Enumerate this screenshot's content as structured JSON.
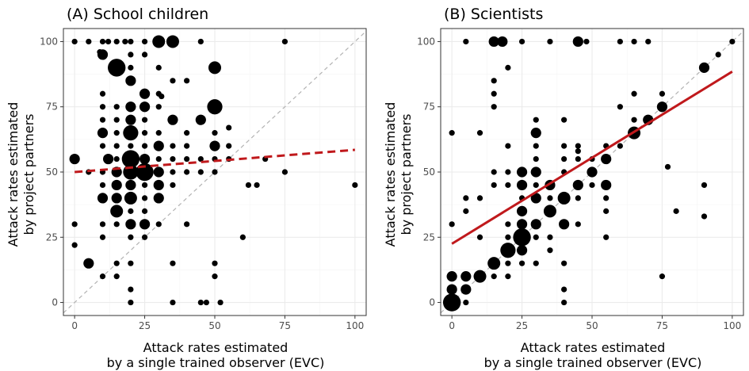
{
  "chart_data": [
    {
      "type": "scatter",
      "title": "(A) School children",
      "xlabel": [
        "Attack rates estimated",
        "by a single trained observer (EVC)"
      ],
      "ylabel": [
        "Attack rates estimated",
        "by project partners"
      ],
      "xlim": [
        -4,
        104
      ],
      "ylim": [
        -5,
        105
      ],
      "xticks": [
        0,
        25,
        50,
        75,
        100
      ],
      "yticks": [
        0,
        25,
        50,
        75,
        100
      ],
      "grid": true,
      "identity_line": true,
      "fit": {
        "intercept": 50,
        "slope": 0.085,
        "style": "dashed",
        "color": "#c0191c"
      },
      "points": [
        {
          "x": 0,
          "y": 100,
          "n": 1
        },
        {
          "x": 5,
          "y": 100,
          "n": 1
        },
        {
          "x": 10,
          "y": 100,
          "n": 1
        },
        {
          "x": 12,
          "y": 100,
          "n": 1
        },
        {
          "x": 15,
          "y": 100,
          "n": 1
        },
        {
          "x": 18,
          "y": 100,
          "n": 1
        },
        {
          "x": 20,
          "y": 100,
          "n": 1
        },
        {
          "x": 25,
          "y": 100,
          "n": 1
        },
        {
          "x": 30,
          "y": 100,
          "n": 4
        },
        {
          "x": 35,
          "y": 100,
          "n": 4
        },
        {
          "x": 45,
          "y": 100,
          "n": 1
        },
        {
          "x": 75,
          "y": 100,
          "n": 1
        },
        {
          "x": 10,
          "y": 95,
          "n": 3
        },
        {
          "x": 20,
          "y": 95,
          "n": 1
        },
        {
          "x": 25,
          "y": 95,
          "n": 1
        },
        {
          "x": 9,
          "y": 96,
          "n": 1
        },
        {
          "x": 15,
          "y": 90,
          "n": 6
        },
        {
          "x": 20,
          "y": 90,
          "n": 1
        },
        {
          "x": 30,
          "y": 90,
          "n": 1
        },
        {
          "x": 50,
          "y": 90,
          "n": 4
        },
        {
          "x": 20,
          "y": 85,
          "n": 3
        },
        {
          "x": 35,
          "y": 85,
          "n": 1
        },
        {
          "x": 40,
          "y": 85,
          "n": 1
        },
        {
          "x": 10,
          "y": 80,
          "n": 1
        },
        {
          "x": 25,
          "y": 80,
          "n": 3
        },
        {
          "x": 30,
          "y": 80,
          "n": 1
        },
        {
          "x": 31,
          "y": 79,
          "n": 1
        },
        {
          "x": 10,
          "y": 75,
          "n": 1
        },
        {
          "x": 15,
          "y": 75,
          "n": 1
        },
        {
          "x": 20,
          "y": 75,
          "n": 3
        },
        {
          "x": 25,
          "y": 75,
          "n": 3
        },
        {
          "x": 30,
          "y": 75,
          "n": 1
        },
        {
          "x": 50,
          "y": 75,
          "n": 5
        },
        {
          "x": 10,
          "y": 70,
          "n": 1
        },
        {
          "x": 15,
          "y": 70,
          "n": 1
        },
        {
          "x": 20,
          "y": 70,
          "n": 3
        },
        {
          "x": 25,
          "y": 70,
          "n": 1
        },
        {
          "x": 35,
          "y": 70,
          "n": 3
        },
        {
          "x": 45,
          "y": 70,
          "n": 3
        },
        {
          "x": 55,
          "y": 67,
          "n": 1
        },
        {
          "x": 10,
          "y": 65,
          "n": 3
        },
        {
          "x": 15,
          "y": 65,
          "n": 1
        },
        {
          "x": 20,
          "y": 65,
          "n": 5
        },
        {
          "x": 25,
          "y": 65,
          "n": 1
        },
        {
          "x": 30,
          "y": 65,
          "n": 1
        },
        {
          "x": 40,
          "y": 65,
          "n": 1
        },
        {
          "x": 50,
          "y": 65,
          "n": 1
        },
        {
          "x": 10,
          "y": 60,
          "n": 1
        },
        {
          "x": 15,
          "y": 60,
          "n": 1
        },
        {
          "x": 20,
          "y": 60,
          "n": 1
        },
        {
          "x": 25,
          "y": 60,
          "n": 1
        },
        {
          "x": 30,
          "y": 60,
          "n": 3
        },
        {
          "x": 35,
          "y": 60,
          "n": 1
        },
        {
          "x": 40,
          "y": 60,
          "n": 1
        },
        {
          "x": 50,
          "y": 60,
          "n": 3
        },
        {
          "x": 55,
          "y": 60,
          "n": 1
        },
        {
          "x": 0,
          "y": 55,
          "n": 3
        },
        {
          "x": 12,
          "y": 55,
          "n": 3
        },
        {
          "x": 15,
          "y": 55,
          "n": 1
        },
        {
          "x": 20,
          "y": 55,
          "n": 6
        },
        {
          "x": 25,
          "y": 55,
          "n": 3
        },
        {
          "x": 30,
          "y": 55,
          "n": 1
        },
        {
          "x": 35,
          "y": 55,
          "n": 1
        },
        {
          "x": 40,
          "y": 55,
          "n": 1
        },
        {
          "x": 45,
          "y": 55,
          "n": 1
        },
        {
          "x": 50,
          "y": 55,
          "n": 1
        },
        {
          "x": 55,
          "y": 55,
          "n": 1
        },
        {
          "x": 68,
          "y": 55,
          "n": 1
        },
        {
          "x": 5,
          "y": 50,
          "n": 1
        },
        {
          "x": 10,
          "y": 50,
          "n": 1
        },
        {
          "x": 15,
          "y": 50,
          "n": 3
        },
        {
          "x": 20,
          "y": 50,
          "n": 5
        },
        {
          "x": 25,
          "y": 50,
          "n": 6
        },
        {
          "x": 30,
          "y": 50,
          "n": 3
        },
        {
          "x": 35,
          "y": 50,
          "n": 1
        },
        {
          "x": 40,
          "y": 50,
          "n": 1
        },
        {
          "x": 45,
          "y": 50,
          "n": 1
        },
        {
          "x": 50,
          "y": 50,
          "n": 1
        },
        {
          "x": 75,
          "y": 50,
          "n": 1
        },
        {
          "x": 10,
          "y": 45,
          "n": 1
        },
        {
          "x": 15,
          "y": 45,
          "n": 3
        },
        {
          "x": 20,
          "y": 45,
          "n": 3
        },
        {
          "x": 25,
          "y": 45,
          "n": 1
        },
        {
          "x": 30,
          "y": 45,
          "n": 3
        },
        {
          "x": 35,
          "y": 45,
          "n": 1
        },
        {
          "x": 62,
          "y": 45,
          "n": 1
        },
        {
          "x": 65,
          "y": 45,
          "n": 1
        },
        {
          "x": 100,
          "y": 45,
          "n": 1
        },
        {
          "x": 10,
          "y": 40,
          "n": 3
        },
        {
          "x": 15,
          "y": 40,
          "n": 3
        },
        {
          "x": 20,
          "y": 40,
          "n": 4
        },
        {
          "x": 25,
          "y": 40,
          "n": 1
        },
        {
          "x": 30,
          "y": 40,
          "n": 3
        },
        {
          "x": 15,
          "y": 35,
          "n": 4
        },
        {
          "x": 20,
          "y": 35,
          "n": 1
        },
        {
          "x": 25,
          "y": 35,
          "n": 1
        },
        {
          "x": 0,
          "y": 30,
          "n": 1
        },
        {
          "x": 10,
          "y": 30,
          "n": 1
        },
        {
          "x": 15,
          "y": 30,
          "n": 1
        },
        {
          "x": 20,
          "y": 30,
          "n": 3
        },
        {
          "x": 25,
          "y": 30,
          "n": 3
        },
        {
          "x": 30,
          "y": 30,
          "n": 1
        },
        {
          "x": 40,
          "y": 30,
          "n": 1
        },
        {
          "x": 10,
          "y": 25,
          "n": 1
        },
        {
          "x": 20,
          "y": 25,
          "n": 1
        },
        {
          "x": 25,
          "y": 25,
          "n": 1
        },
        {
          "x": 60,
          "y": 25,
          "n": 1
        },
        {
          "x": 0,
          "y": 22,
          "n": 1
        },
        {
          "x": 5,
          "y": 15,
          "n": 3
        },
        {
          "x": 15,
          "y": 15,
          "n": 1
        },
        {
          "x": 20,
          "y": 15,
          "n": 1
        },
        {
          "x": 35,
          "y": 15,
          "n": 1
        },
        {
          "x": 50,
          "y": 15,
          "n": 1
        },
        {
          "x": 10,
          "y": 10,
          "n": 1
        },
        {
          "x": 15,
          "y": 10,
          "n": 1
        },
        {
          "x": 50,
          "y": 10,
          "n": 1
        },
        {
          "x": 20,
          "y": 5,
          "n": 1
        },
        {
          "x": 20,
          "y": 0,
          "n": 1
        },
        {
          "x": 35,
          "y": 0,
          "n": 1
        },
        {
          "x": 45,
          "y": 0,
          "n": 1
        },
        {
          "x": 47,
          "y": 0,
          "n": 1
        },
        {
          "x": 52,
          "y": 0,
          "n": 1
        }
      ]
    },
    {
      "type": "scatter",
      "title": "(B) Scientists",
      "xlabel": [
        "Attack rates estimated",
        "by a single trained observer (EVC)"
      ],
      "ylabel": [
        "Attack rates estimated",
        "by project partners"
      ],
      "xlim": [
        -4,
        104
      ],
      "ylim": [
        -5,
        105
      ],
      "xticks": [
        0,
        25,
        50,
        75,
        100
      ],
      "yticks": [
        0,
        25,
        50,
        75,
        100
      ],
      "grid": true,
      "identity_line": true,
      "fit": {
        "intercept": 22.5,
        "slope": 0.66,
        "style": "solid",
        "color": "#c0191c"
      },
      "points": [
        {
          "x": 5,
          "y": 100,
          "n": 1
        },
        {
          "x": 15,
          "y": 100,
          "n": 3
        },
        {
          "x": 18,
          "y": 100,
          "n": 3
        },
        {
          "x": 25,
          "y": 100,
          "n": 1
        },
        {
          "x": 35,
          "y": 100,
          "n": 1
        },
        {
          "x": 45,
          "y": 100,
          "n": 3
        },
        {
          "x": 48,
          "y": 100,
          "n": 1
        },
        {
          "x": 60,
          "y": 100,
          "n": 1
        },
        {
          "x": 65,
          "y": 100,
          "n": 1
        },
        {
          "x": 70,
          "y": 100,
          "n": 1
        },
        {
          "x": 100,
          "y": 100,
          "n": 1
        },
        {
          "x": 95,
          "y": 95,
          "n": 1
        },
        {
          "x": 20,
          "y": 90,
          "n": 1
        },
        {
          "x": 90,
          "y": 90,
          "n": 3
        },
        {
          "x": 15,
          "y": 85,
          "n": 1
        },
        {
          "x": 15,
          "y": 80,
          "n": 1
        },
        {
          "x": 65,
          "y": 80,
          "n": 1
        },
        {
          "x": 75,
          "y": 80,
          "n": 1
        },
        {
          "x": 15,
          "y": 75,
          "n": 1
        },
        {
          "x": 60,
          "y": 75,
          "n": 1
        },
        {
          "x": 75,
          "y": 75,
          "n": 3
        },
        {
          "x": 65,
          "y": 70,
          "n": 1
        },
        {
          "x": 70,
          "y": 70,
          "n": 3
        },
        {
          "x": 30,
          "y": 70,
          "n": 1
        },
        {
          "x": 40,
          "y": 70,
          "n": 1
        },
        {
          "x": 0,
          "y": 65,
          "n": 1
        },
        {
          "x": 10,
          "y": 65,
          "n": 1
        },
        {
          "x": 30,
          "y": 65,
          "n": 3
        },
        {
          "x": 65,
          "y": 65,
          "n": 4
        },
        {
          "x": 20,
          "y": 60,
          "n": 1
        },
        {
          "x": 30,
          "y": 60,
          "n": 1
        },
        {
          "x": 40,
          "y": 60,
          "n": 1
        },
        {
          "x": 45,
          "y": 60,
          "n": 1
        },
        {
          "x": 55,
          "y": 60,
          "n": 1
        },
        {
          "x": 60,
          "y": 60,
          "n": 1
        },
        {
          "x": 40,
          "y": 55,
          "n": 1
        },
        {
          "x": 45,
          "y": 55,
          "n": 1
        },
        {
          "x": 50,
          "y": 55,
          "n": 1
        },
        {
          "x": 55,
          "y": 55,
          "n": 3
        },
        {
          "x": 30,
          "y": 55,
          "n": 1
        },
        {
          "x": 45,
          "y": 58,
          "n": 1
        },
        {
          "x": 15,
          "y": 50,
          "n": 1
        },
        {
          "x": 20,
          "y": 50,
          "n": 1
        },
        {
          "x": 25,
          "y": 50,
          "n": 3
        },
        {
          "x": 30,
          "y": 50,
          "n": 3
        },
        {
          "x": 40,
          "y": 50,
          "n": 1
        },
        {
          "x": 50,
          "y": 50,
          "n": 3
        },
        {
          "x": 77,
          "y": 52,
          "n": 1
        },
        {
          "x": 15,
          "y": 45,
          "n": 1
        },
        {
          "x": 20,
          "y": 45,
          "n": 1
        },
        {
          "x": 25,
          "y": 45,
          "n": 3
        },
        {
          "x": 30,
          "y": 45,
          "n": 1
        },
        {
          "x": 35,
          "y": 45,
          "n": 3
        },
        {
          "x": 45,
          "y": 45,
          "n": 3
        },
        {
          "x": 50,
          "y": 45,
          "n": 1
        },
        {
          "x": 55,
          "y": 45,
          "n": 3
        },
        {
          "x": 90,
          "y": 45,
          "n": 1
        },
        {
          "x": 5,
          "y": 40,
          "n": 1
        },
        {
          "x": 10,
          "y": 40,
          "n": 1
        },
        {
          "x": 25,
          "y": 40,
          "n": 1
        },
        {
          "x": 30,
          "y": 40,
          "n": 3
        },
        {
          "x": 35,
          "y": 40,
          "n": 1
        },
        {
          "x": 40,
          "y": 40,
          "n": 4
        },
        {
          "x": 45,
          "y": 40,
          "n": 1
        },
        {
          "x": 55,
          "y": 40,
          "n": 1
        },
        {
          "x": 5,
          "y": 35,
          "n": 1
        },
        {
          "x": 25,
          "y": 35,
          "n": 3
        },
        {
          "x": 35,
          "y": 35,
          "n": 4
        },
        {
          "x": 55,
          "y": 35,
          "n": 1
        },
        {
          "x": 80,
          "y": 35,
          "n": 1
        },
        {
          "x": 90,
          "y": 33,
          "n": 1
        },
        {
          "x": 0,
          "y": 30,
          "n": 1
        },
        {
          "x": 20,
          "y": 30,
          "n": 1
        },
        {
          "x": 25,
          "y": 30,
          "n": 3
        },
        {
          "x": 30,
          "y": 30,
          "n": 3
        },
        {
          "x": 40,
          "y": 30,
          "n": 3
        },
        {
          "x": 45,
          "y": 30,
          "n": 1
        },
        {
          "x": 10,
          "y": 25,
          "n": 1
        },
        {
          "x": 20,
          "y": 25,
          "n": 1
        },
        {
          "x": 25,
          "y": 25,
          "n": 6
        },
        {
          "x": 30,
          "y": 25,
          "n": 1
        },
        {
          "x": 35,
          "y": 25,
          "n": 1
        },
        {
          "x": 55,
          "y": 25,
          "n": 1
        },
        {
          "x": 20,
          "y": 20,
          "n": 5
        },
        {
          "x": 25,
          "y": 20,
          "n": 3
        },
        {
          "x": 35,
          "y": 20,
          "n": 1
        },
        {
          "x": 15,
          "y": 15,
          "n": 4
        },
        {
          "x": 20,
          "y": 15,
          "n": 1
        },
        {
          "x": 25,
          "y": 15,
          "n": 1
        },
        {
          "x": 30,
          "y": 15,
          "n": 1
        },
        {
          "x": 40,
          "y": 15,
          "n": 1
        },
        {
          "x": 0,
          "y": 10,
          "n": 3
        },
        {
          "x": 5,
          "y": 10,
          "n": 3
        },
        {
          "x": 10,
          "y": 10,
          "n": 4
        },
        {
          "x": 15,
          "y": 10,
          "n": 1
        },
        {
          "x": 20,
          "y": 10,
          "n": 1
        },
        {
          "x": 75,
          "y": 10,
          "n": 1
        },
        {
          "x": 0,
          "y": 5,
          "n": 3
        },
        {
          "x": 5,
          "y": 5,
          "n": 3
        },
        {
          "x": 40,
          "y": 5,
          "n": 1
        },
        {
          "x": 0,
          "y": 0,
          "n": 6
        },
        {
          "x": 5,
          "y": 0,
          "n": 1
        },
        {
          "x": 40,
          "y": 0,
          "n": 1
        }
      ]
    }
  ]
}
